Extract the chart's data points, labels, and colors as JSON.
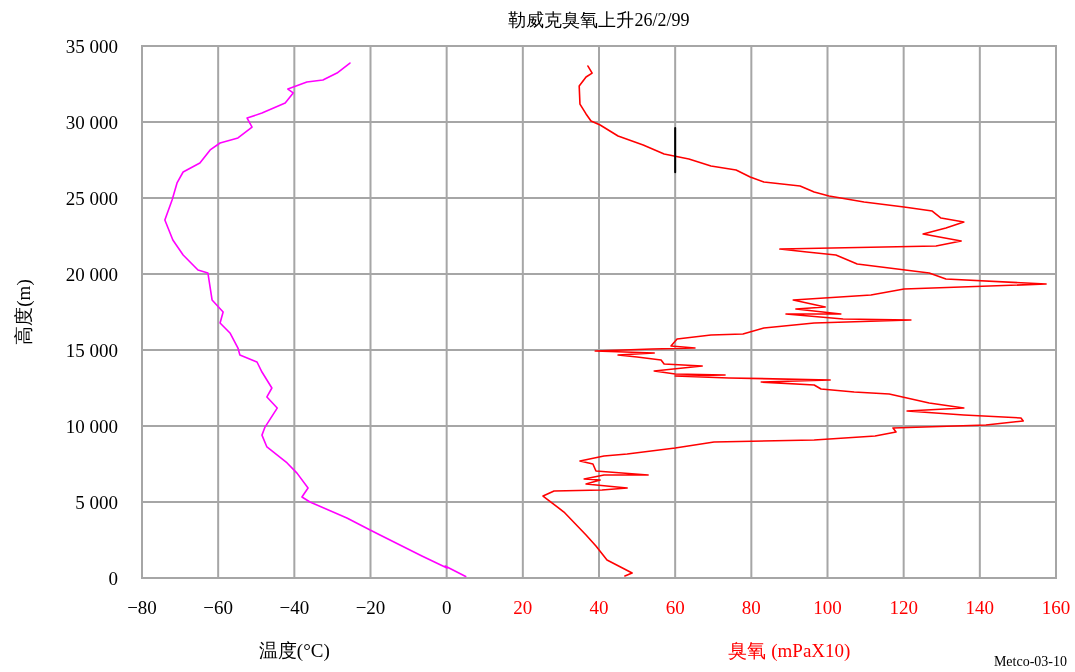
{
  "chart_data": {
    "type": "line",
    "title": "勒威克臭氧上升26/2/99",
    "xlabel": "温度(°C)",
    "ylabel": "高度(m)",
    "xlim": [
      -80,
      160
    ],
    "xticks": [
      {
        "value": -80,
        "label": "−80"
      },
      {
        "value": -60,
        "label": "−60"
      },
      {
        "value": -40,
        "label": "−40"
      },
      {
        "value": -20,
        "label": "−20"
      },
      0,
      20,
      40,
      60,
      80,
      100,
      120,
      140,
      160
    ],
    "ylim": [
      0,
      35000
    ],
    "yticks": [
      {
        "value": 0,
        "label": "0"
      },
      {
        "value": 5000,
        "label": "5 000"
      },
      {
        "value": 10000,
        "label": "10 000"
      },
      {
        "value": 15000,
        "label": "15 000"
      },
      {
        "value": 20000,
        "label": "20 000"
      },
      {
        "value": 25000,
        "label": "25 000"
      },
      {
        "value": 30000,
        "label": "30 000"
      },
      {
        "value": 35000,
        "label": "35 000"
      }
    ],
    "grid": true,
    "annotations": [
      "Metco-03-10"
    ],
    "series": [
      {
        "color": "#ff00ff",
        "x": [
          5,
          -0.4,
          0.1,
          -6.5,
          -17.5,
          -20.1,
          -26.2,
          -35.9,
          -38,
          -36.4,
          -39.3,
          -41.9,
          -47.2,
          -48.5,
          -47.7,
          -44.5,
          -47.2,
          -45.9,
          -48.5,
          -49.8,
          -54.3,
          -54.8,
          -56.9,
          -59.5,
          -58.7,
          -61.6,
          -62.7,
          -65.3,
          -69.2,
          -71.9,
          -74,
          -72.1,
          -70.8,
          -69.2,
          -64.8,
          -62.1,
          -59.5,
          -54.8,
          -51.1,
          -52.4,
          -48.5,
          -42.4,
          -40.3,
          -41.7,
          -36.7,
          -32.5,
          -28.8,
          -25.4
        ],
        "values": [
          100,
          790,
          660,
          1450,
          2830,
          3160,
          3950,
          5000,
          5330,
          5920,
          6900,
          7570,
          8620,
          9400,
          9930,
          11180,
          11910,
          12500,
          13550,
          14210,
          14670,
          15130,
          16120,
          16780,
          17500,
          18290,
          20070,
          20260,
          21250,
          22240,
          23550,
          24870,
          25990,
          26710,
          27300,
          28160,
          28620,
          28950,
          29670,
          30260,
          30590,
          31250,
          31910,
          32170,
          32630,
          32760,
          33220,
          33880
        ]
      },
      {
        "name": "臭氧 (mPaX10)",
        "color": "#ff0000",
        "x": [
          46.8,
          48.7,
          42.1,
          39.2,
          36.6,
          30.8,
          25.3,
          28.2,
          40.8,
          47.4,
          36.6,
          40.3,
          36.1,
          41.3,
          52.9,
          39.2,
          38.4,
          35,
          41.3,
          47.4,
          60,
          70.2,
          96.5,
          112.5,
          118,
          117.2,
          141.6,
          151.4,
          150.8,
          135.8,
          120.9,
          135.8,
          126.7,
          116.2,
          107,
          98.3,
          96.5,
          82.6,
          100.7,
          74.1,
          60,
          73.1,
          60,
          54.5,
          67.1,
          57.1,
          56.3,
          50,
          45,
          54.5,
          39,
          53.9,
          65.2,
          58.9,
          60.5,
          69.4,
          77.8,
          83.3,
          96.5,
          121.9,
          104.1,
          89.1,
          103.5,
          91.7,
          99.4,
          91,
          111.4,
          120.1,
          157.4,
          131.1,
          126.7,
          107.8,
          102.2,
          94.6,
          87.5,
          128.5,
          135.1,
          125.1,
          131.1,
          135.8,
          129.8,
          127.5,
          120.1,
          109.6,
          100.4,
          96.5,
          92.8,
          83.3,
          79.7,
          76,
          69.4,
          63.6,
          57.1,
          51.6,
          45,
          40.3,
          37.9,
          36.6,
          35,
          34.8,
          36.6,
          38.2,
          37.1
        ],
        "values": [
          130,
          330,
          1180,
          2100,
          2830,
          4340,
          5390,
          5720,
          5790,
          5920,
          6180,
          6450,
          6510,
          6780,
          6780,
          7040,
          7500,
          7700,
          8030,
          8160,
          8550,
          8950,
          9080,
          9340,
          9610,
          9870,
          10070,
          10330,
          10530,
          10720,
          10990,
          11180,
          11510,
          12110,
          12240,
          12430,
          12700,
          12890,
          13030,
          13160,
          13290,
          13360,
          13420,
          13620,
          13950,
          14080,
          14340,
          14540,
          14670,
          14800,
          14930,
          15070,
          15130,
          15260,
          15720,
          15990,
          16050,
          16450,
          16780,
          16970,
          17040,
          17370,
          17370,
          17700,
          17830,
          18290,
          18620,
          19010,
          19340,
          19670,
          20070,
          20660,
          21250,
          21450,
          21640,
          21840,
          22170,
          22630,
          23030,
          23420,
          23680,
          24140,
          24410,
          24740,
          25130,
          25390,
          25790,
          26050,
          26380,
          26840,
          27110,
          27570,
          27890,
          28490,
          29080,
          29800,
          30070,
          30530,
          31180,
          32370,
          32960,
          33220,
          33680
        ]
      },
      {
        "color": "#000000",
        "x": [
          60,
          60
        ],
        "values": [
          26700,
          29600
        ]
      }
    ]
  }
}
